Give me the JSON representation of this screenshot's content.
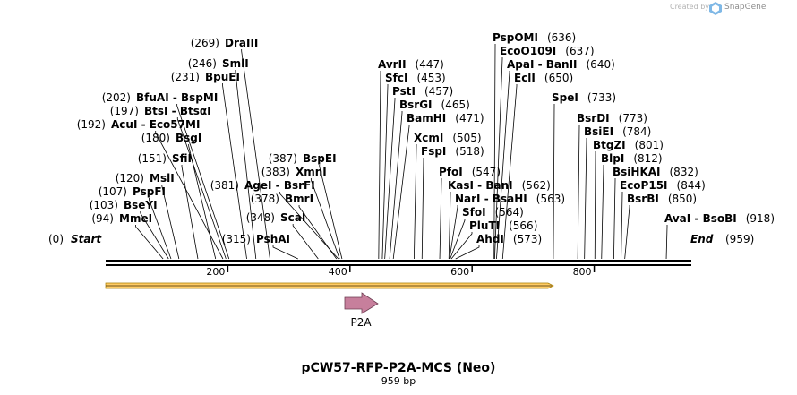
{
  "credit": {
    "prefix": "Created by",
    "brand": "SnapGene"
  },
  "title": "pCW57-RFP-P2A-MCS (Neo)",
  "length_label": "959 bp",
  "sequence_length": 959,
  "axis_ticks": [
    {
      "bp": 200,
      "label": "200"
    },
    {
      "bp": 400,
      "label": "400"
    },
    {
      "bp": 600,
      "label": "600"
    },
    {
      "bp": 800,
      "label": "800"
    }
  ],
  "ends": {
    "start": {
      "name": "Start",
      "pos": "(0)"
    },
    "end": {
      "name": "End",
      "pos": "(959)"
    }
  },
  "feature": {
    "name": "P2A",
    "color": "#c77f9c"
  },
  "orf_color": "#ffcc66",
  "sites": [
    {
      "name": "DraIII",
      "pos": "(269)",
      "bp": 269,
      "lbl_pos": "left"
    },
    {
      "name": "SmlI",
      "pos": "(246)",
      "bp": 246,
      "lbl_pos": "left"
    },
    {
      "name": "BpuEI",
      "pos": "(231)",
      "bp": 231,
      "lbl_pos": "left"
    },
    {
      "name": "BfuAI - BspMI",
      "pos": "(202)",
      "bp": 202,
      "lbl_pos": "left"
    },
    {
      "name": "BtsI - BtsαI",
      "pos": "(197)",
      "bp": 197,
      "lbl_pos": "left"
    },
    {
      "name": "AcuI - Eco57MI",
      "pos": "(192)",
      "bp": 192,
      "lbl_pos": "left"
    },
    {
      "name": "BsgI",
      "pos": "(180)",
      "bp": 180,
      "lbl_pos": "left"
    },
    {
      "name": "SfiI",
      "pos": "(151)",
      "bp": 151,
      "lbl_pos": "left"
    },
    {
      "name": "MslI",
      "pos": "(120)",
      "bp": 120,
      "lbl_pos": "left"
    },
    {
      "name": "PspFI",
      "pos": "(107)",
      "bp": 107,
      "lbl_pos": "left"
    },
    {
      "name": "BseYI",
      "pos": "(103)",
      "bp": 103,
      "lbl_pos": "left"
    },
    {
      "name": "MmeI",
      "pos": "(94)",
      "bp": 94,
      "lbl_pos": "left"
    },
    {
      "name": "BspEI",
      "pos": "(387)",
      "bp": 387,
      "lbl_pos": "left"
    },
    {
      "name": "XmnI",
      "pos": "(383)",
      "bp": 383,
      "lbl_pos": "left"
    },
    {
      "name": "AgeI - BsrFI",
      "pos": "(381)",
      "bp": 381,
      "lbl_pos": "left"
    },
    {
      "name": "BmrI",
      "pos": "(378)",
      "bp": 378,
      "lbl_pos": "left"
    },
    {
      "name": "ScaI",
      "pos": "(348)",
      "bp": 348,
      "lbl_pos": "left"
    },
    {
      "name": "PshAI",
      "pos": "(315)",
      "bp": 315,
      "lbl_pos": "left"
    },
    {
      "name": "AvrII",
      "pos": "(447)",
      "bp": 447,
      "lbl_pos": "right"
    },
    {
      "name": "SfcI",
      "pos": "(453)",
      "bp": 453,
      "lbl_pos": "right"
    },
    {
      "name": "PstI",
      "pos": "(457)",
      "bp": 457,
      "lbl_pos": "right"
    },
    {
      "name": "BsrGI",
      "pos": "(465)",
      "bp": 465,
      "lbl_pos": "right"
    },
    {
      "name": "BamHI",
      "pos": "(471)",
      "bp": 471,
      "lbl_pos": "right"
    },
    {
      "name": "XcmI",
      "pos": "(505)",
      "bp": 505,
      "lbl_pos": "right"
    },
    {
      "name": "FspI",
      "pos": "(518)",
      "bp": 518,
      "lbl_pos": "right"
    },
    {
      "name": "PfoI",
      "pos": "(547)",
      "bp": 547,
      "lbl_pos": "right"
    },
    {
      "name": "KasI - BanI",
      "pos": "(562)",
      "bp": 562,
      "lbl_pos": "right"
    },
    {
      "name": "NarI - BsaHI",
      "pos": "(563)",
      "bp": 563,
      "lbl_pos": "right"
    },
    {
      "name": "SfoI",
      "pos": "(564)",
      "bp": 564,
      "lbl_pos": "right"
    },
    {
      "name": "PluTI",
      "pos": "(566)",
      "bp": 566,
      "lbl_pos": "right"
    },
    {
      "name": "AhdI",
      "pos": "(573)",
      "bp": 573,
      "lbl_pos": "right"
    },
    {
      "name": "PspOMI",
      "pos": "(636)",
      "bp": 636,
      "lbl_pos": "right"
    },
    {
      "name": "EcoO109I",
      "pos": "(637)",
      "bp": 637,
      "lbl_pos": "right"
    },
    {
      "name": "ApaI - BanII",
      "pos": "(640)",
      "bp": 640,
      "lbl_pos": "right"
    },
    {
      "name": "EclI",
      "pos": "(650)",
      "bp": 650,
      "lbl_pos": "right"
    },
    {
      "name": "SpeI",
      "pos": "(733)",
      "bp": 733,
      "lbl_pos": "right"
    },
    {
      "name": "BsrDI",
      "pos": "(773)",
      "bp": 773,
      "lbl_pos": "right"
    },
    {
      "name": "BsiEI",
      "pos": "(784)",
      "bp": 784,
      "lbl_pos": "right"
    },
    {
      "name": "BtgZI",
      "pos": "(801)",
      "bp": 801,
      "lbl_pos": "right"
    },
    {
      "name": "BlpI",
      "pos": "(812)",
      "bp": 812,
      "lbl_pos": "right"
    },
    {
      "name": "BsiHKAI",
      "pos": "(832)",
      "bp": 832,
      "lbl_pos": "right"
    },
    {
      "name": "EcoP15I",
      "pos": "(844)",
      "bp": 844,
      "lbl_pos": "right"
    },
    {
      "name": "BsrBI",
      "pos": "(850)",
      "bp": 850,
      "lbl_pos": "right"
    },
    {
      "name": "AvaI - BsoBI",
      "pos": "(918)",
      "bp": 918,
      "lbl_pos": "right"
    }
  ]
}
